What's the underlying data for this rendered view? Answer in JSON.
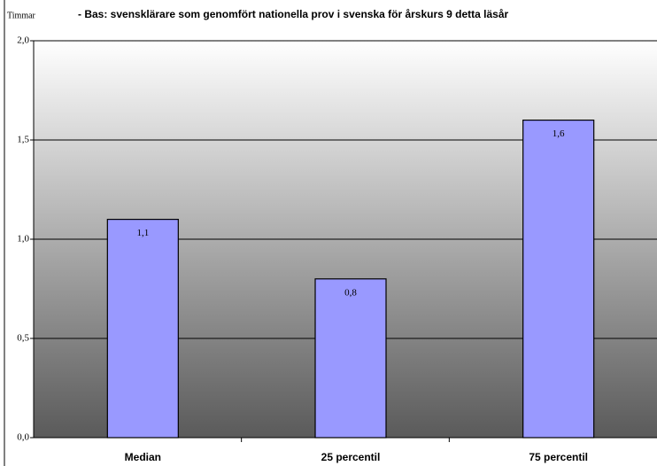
{
  "chart_data": {
    "type": "bar",
    "title": "- Bas: svensklärare som genomfört nationella prov i svenska för årskurs 9 detta läsår",
    "y_label": "Timmar",
    "categories": [
      "Median",
      "25 percentil",
      "75 percentil"
    ],
    "values": [
      1.1,
      0.8,
      1.6
    ],
    "value_labels": [
      "1,1",
      "0,8",
      "1,6"
    ],
    "color": "#9999ff",
    "ylim": [
      0,
      2
    ],
    "yticks": [
      {
        "value": 0,
        "label": "0,0"
      },
      {
        "value": 0.5,
        "label": "0,5"
      },
      {
        "value": 1,
        "label": "1,0"
      },
      {
        "value": 1.5,
        "label": "1,5"
      },
      {
        "value": 2,
        "label": "2,0"
      }
    ],
    "grid": true
  }
}
